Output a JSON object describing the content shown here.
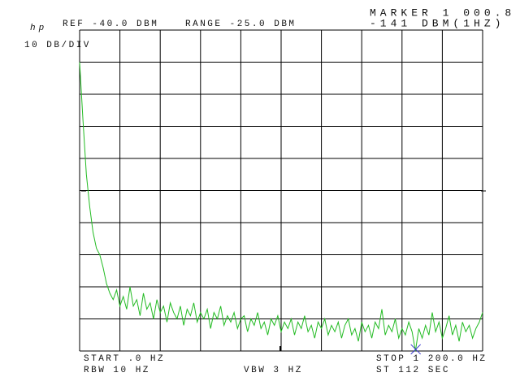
{
  "chart_data": {
    "type": "line",
    "logo": "hp",
    "ref_level": "REF -40.0 DBM",
    "range": "RANGE -25.0 DBM",
    "marker_label": "MARKER 1 000.8",
    "marker_value_label": "-141 DBM(1HZ)",
    "scale": "10 DB/DIV",
    "start": "START .0 HZ",
    "stop": "STOP 1 200.0 HZ",
    "rbw": "RBW 10 HZ",
    "vbw": "VBW 3 HZ",
    "sweep_time": "ST 112 SEC",
    "xlim": [
      0,
      1200
    ],
    "ylim": [
      -140,
      -40
    ],
    "xticks": [
      0,
      120,
      240,
      360,
      480,
      600,
      720,
      840,
      960,
      1080,
      1200
    ],
    "yticks": [
      -140,
      -130,
      -120,
      -110,
      -100,
      -90,
      -80,
      -70,
      -60,
      -50,
      -40
    ],
    "grid": true,
    "marker": {
      "x": 1000.8,
      "value": -141,
      "color": "#3a3ad0"
    },
    "series": [
      {
        "color": "#22bb22",
        "x": [
          0,
          10,
          20,
          30,
          40,
          50,
          60,
          70,
          80,
          90,
          100,
          110,
          120,
          130,
          140,
          150,
          160,
          170,
          180,
          190,
          200,
          210,
          220,
          230,
          240,
          250,
          260,
          270,
          280,
          290,
          300,
          310,
          320,
          330,
          340,
          350,
          360,
          370,
          380,
          390,
          400,
          410,
          420,
          430,
          440,
          450,
          460,
          470,
          480,
          490,
          500,
          510,
          520,
          530,
          540,
          550,
          560,
          570,
          580,
          590,
          600,
          610,
          620,
          630,
          640,
          650,
          660,
          670,
          680,
          690,
          700,
          710,
          720,
          730,
          740,
          750,
          760,
          770,
          780,
          790,
          800,
          810,
          820,
          830,
          840,
          850,
          860,
          870,
          880,
          890,
          900,
          910,
          920,
          930,
          940,
          950,
          960,
          970,
          980,
          990,
          1000,
          1010,
          1020,
          1030,
          1040,
          1050,
          1060,
          1070,
          1080,
          1090,
          1100,
          1110,
          1120,
          1130,
          1140,
          1150,
          1160,
          1170,
          1180,
          1190,
          1200
        ],
        "values": [
          -50,
          -68,
          -85,
          -95,
          -103,
          -108,
          -110,
          -114,
          -119,
          -122,
          -124,
          -121,
          -126,
          -123,
          -127,
          -120,
          -126,
          -124,
          -129,
          -122,
          -127,
          -125,
          -130,
          -124,
          -128,
          -126,
          -131,
          -125,
          -128,
          -130,
          -126,
          -132,
          -127,
          -129,
          -125,
          -131,
          -128,
          -130,
          -127,
          -133,
          -128,
          -130,
          -126,
          -132,
          -129,
          -131,
          -128,
          -133,
          -130,
          -129,
          -134,
          -130,
          -132,
          -128,
          -133,
          -131,
          -135,
          -130,
          -132,
          -129,
          -134,
          -131,
          -133,
          -130,
          -135,
          -131,
          -133,
          -129,
          -134,
          -132,
          -136,
          -131,
          -133,
          -130,
          -135,
          -132,
          -134,
          -131,
          -136,
          -132,
          -130,
          -135,
          -133,
          -137,
          -131,
          -134,
          -132,
          -136,
          -131,
          -133,
          -127,
          -135,
          -132,
          -134,
          -130,
          -136,
          -133,
          -135,
          -131,
          -134,
          -140,
          -133,
          -136,
          -132,
          -135,
          -128,
          -134,
          -131,
          -136,
          -133,
          -129,
          -135,
          -132,
          -137,
          -131,
          -134,
          -132,
          -136,
          -133,
          -131,
          -128
        ]
      }
    ]
  }
}
